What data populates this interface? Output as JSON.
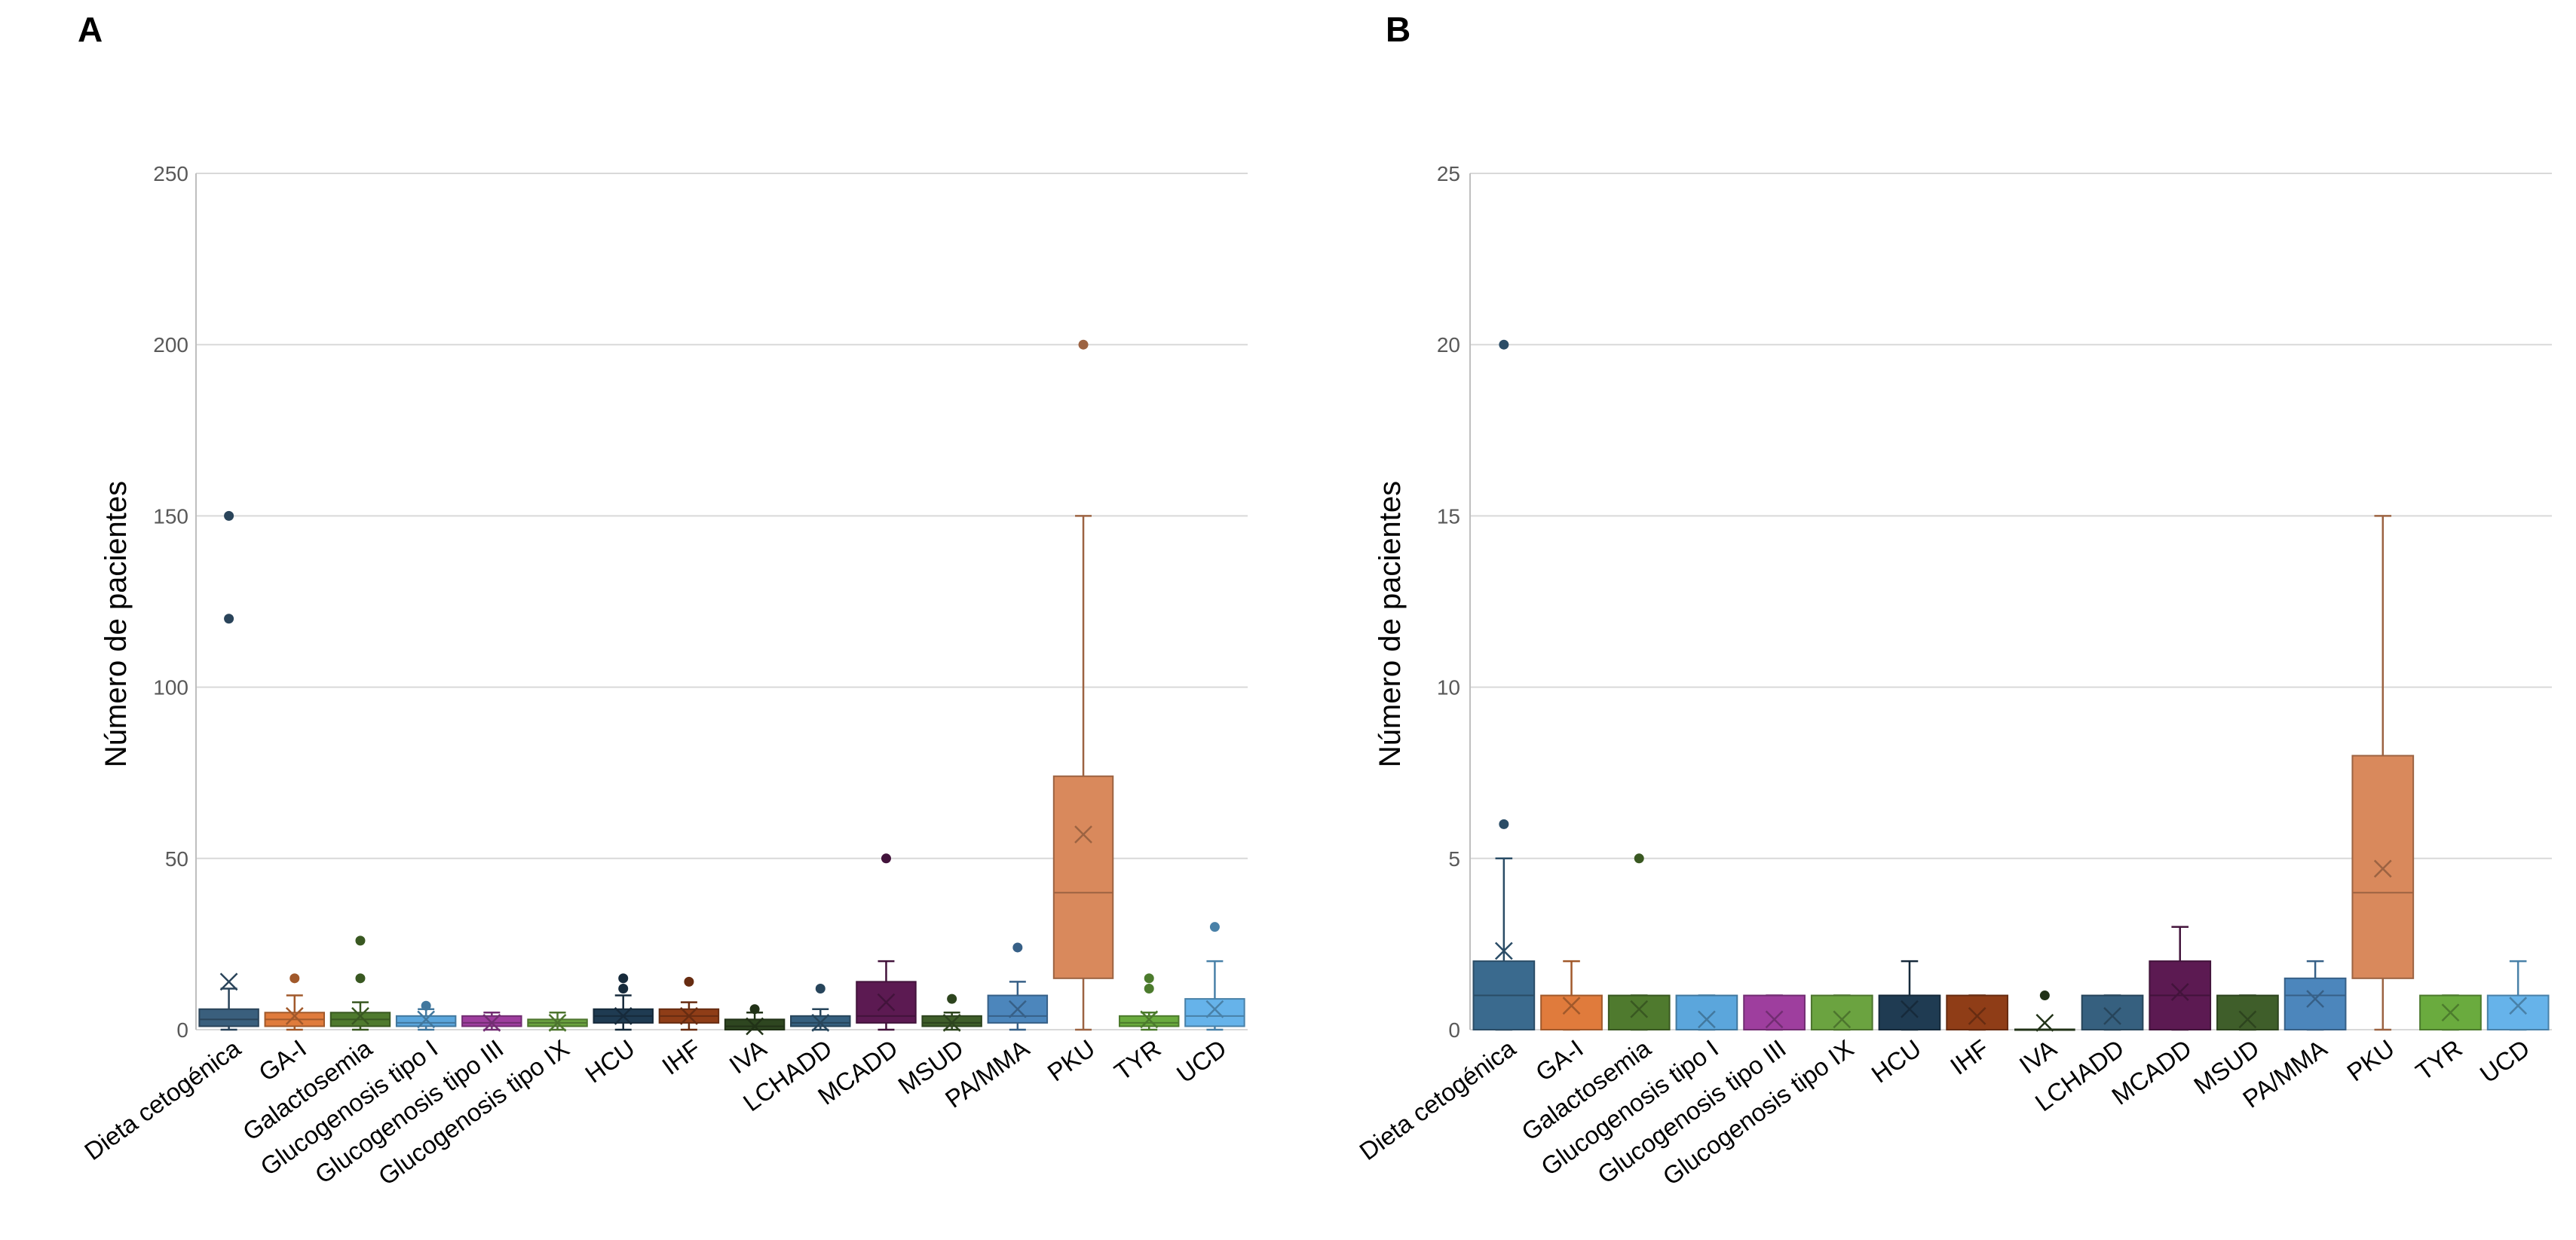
{
  "chart_data": [
    {
      "panel_label": "A",
      "type": "box",
      "ylabel": "Número de pacientes",
      "ylim": [
        0,
        250
      ],
      "yticks": [
        0,
        50,
        100,
        150,
        200,
        250
      ],
      "grid": true,
      "categories": [
        "Dieta cetogénica",
        "GA-I",
        "Galactosemia",
        "Glucogenosis tipo I",
        "Glucogenosis tipo III",
        "Glucogenosis tipo IX",
        "HCU",
        "IHF",
        "IVA",
        "LCHADD",
        "MCADD",
        "MSUD",
        "PA/MMA",
        "PKU",
        "TYR",
        "UCD"
      ],
      "boxes": [
        {
          "category": "Dieta cetogénica",
          "color": "#3a5f7d",
          "min": 0,
          "q1": 1,
          "median": 3,
          "q3": 6,
          "max": 12,
          "mean": 14,
          "outliers": [
            120,
            150
          ]
        },
        {
          "category": "GA-I",
          "color": "#e07b3c",
          "min": 0,
          "q1": 1,
          "median": 3,
          "q3": 5,
          "max": 10,
          "mean": 4,
          "outliers": [
            15
          ]
        },
        {
          "category": "Galactosemia",
          "color": "#4f7a2e",
          "min": 0,
          "q1": 1,
          "median": 3,
          "q3": 5,
          "max": 8,
          "mean": 4,
          "outliers": [
            15,
            26
          ]
        },
        {
          "category": "Glucogenosis tipo I",
          "color": "#5ba6dc",
          "min": 0,
          "q1": 1,
          "median": 2,
          "q3": 4,
          "max": 6,
          "mean": 3,
          "outliers": [
            7
          ]
        },
        {
          "category": "Glucogenosis tipo III",
          "color": "#9e3e9e",
          "min": 0,
          "q1": 1,
          "median": 2,
          "q3": 4,
          "max": 5,
          "mean": 2,
          "outliers": []
        },
        {
          "category": "Glucogenosis tipo IX",
          "color": "#6ba340",
          "min": 0,
          "q1": 1,
          "median": 2,
          "q3": 3,
          "max": 5,
          "mean": 2,
          "outliers": []
        },
        {
          "category": "HCU",
          "color": "#1f3b52",
          "min": 0,
          "q1": 2,
          "median": 4,
          "q3": 6,
          "max": 10,
          "mean": 4,
          "outliers": [
            12,
            15
          ]
        },
        {
          "category": "IHF",
          "color": "#8f3d17",
          "min": 0,
          "q1": 2,
          "median": 4,
          "q3": 6,
          "max": 8,
          "mean": 4,
          "outliers": [
            14
          ]
        },
        {
          "category": "IVA",
          "color": "#2e4620",
          "min": 0,
          "q1": 0,
          "median": 1,
          "q3": 3,
          "max": 5,
          "mean": 1,
          "outliers": [
            6
          ]
        },
        {
          "category": "LCHADD",
          "color": "#36607f",
          "min": 0,
          "q1": 1,
          "median": 2,
          "q3": 4,
          "max": 6,
          "mean": 2,
          "outliers": [
            12
          ]
        },
        {
          "category": "MCADD",
          "color": "#5c1a52",
          "min": 0,
          "q1": 2,
          "median": 4,
          "q3": 14,
          "max": 20,
          "mean": 8,
          "outliers": [
            50
          ]
        },
        {
          "category": "MSUD",
          "color": "#3f5e2a",
          "min": 0,
          "q1": 1,
          "median": 2,
          "q3": 4,
          "max": 5,
          "mean": 2,
          "outliers": [
            9
          ]
        },
        {
          "category": "PA/MMA",
          "color": "#4c86bc",
          "min": 0,
          "q1": 2,
          "median": 4,
          "q3": 10,
          "max": 14,
          "mean": 6,
          "outliers": [
            24
          ]
        },
        {
          "category": "PKU",
          "color": "#d9895c",
          "min": 0,
          "q1": 15,
          "median": 40,
          "q3": 74,
          "max": 150,
          "mean": 57,
          "outliers": [
            200
          ]
        },
        {
          "category": "TYR",
          "color": "#6aab3e",
          "min": 0,
          "q1": 1,
          "median": 2,
          "q3": 4,
          "max": 5,
          "mean": 3,
          "outliers": [
            12,
            15
          ]
        },
        {
          "category": "UCD",
          "color": "#66b3ea",
          "min": 0,
          "q1": 1,
          "median": 4,
          "q3": 9,
          "max": 20,
          "mean": 6,
          "outliers": [
            30
          ]
        }
      ]
    },
    {
      "panel_label": "B",
      "type": "box",
      "ylabel": "Número de pacientes",
      "ylim": [
        0,
        25
      ],
      "yticks": [
        0,
        5,
        10,
        15,
        20,
        25
      ],
      "grid": true,
      "categories": [
        "Dieta cetogénica",
        "GA-I",
        "Galactosemia",
        "Glucogenosis tipo I",
        "Glucogenosis tipo III",
        "Glucogenosis tipo IX",
        "HCU",
        "IHF",
        "IVA",
        "LCHADD",
        "MCADD",
        "MSUD",
        "PA/MMA",
        "PKU",
        "TYR",
        "UCD"
      ],
      "boxes": [
        {
          "category": "Dieta cetogénica",
          "color": "#3a6a8e",
          "min": 0,
          "q1": 0,
          "median": 1,
          "q3": 2,
          "max": 5,
          "mean": 2.3,
          "outliers": [
            6,
            20
          ]
        },
        {
          "category": "GA-I",
          "color": "#e07b3c",
          "min": 0,
          "q1": 0,
          "median": 0,
          "q3": 1,
          "max": 2,
          "mean": 0.7,
          "outliers": []
        },
        {
          "category": "Galactosemia",
          "color": "#4f7a2e",
          "min": 0,
          "q1": 0,
          "median": 0,
          "q3": 1,
          "max": 1,
          "mean": 0.6,
          "outliers": [
            5
          ]
        },
        {
          "category": "Glucogenosis tipo I",
          "color": "#5ba6dc",
          "min": 0,
          "q1": 0,
          "median": 0,
          "q3": 1,
          "max": 1,
          "mean": 0.3,
          "outliers": []
        },
        {
          "category": "Glucogenosis tipo III",
          "color": "#9e3e9e",
          "min": 0,
          "q1": 0,
          "median": 0,
          "q3": 1,
          "max": 1,
          "mean": 0.3,
          "outliers": []
        },
        {
          "category": "Glucogenosis tipo IX",
          "color": "#6ba340",
          "min": 0,
          "q1": 0,
          "median": 0,
          "q3": 1,
          "max": 1,
          "mean": 0.3,
          "outliers": []
        },
        {
          "category": "HCU",
          "color": "#1f3b52",
          "min": 0,
          "q1": 0,
          "median": 1,
          "q3": 1,
          "max": 2,
          "mean": 0.6,
          "outliers": []
        },
        {
          "category": "IHF",
          "color": "#8f3d17",
          "min": 0,
          "q1": 0,
          "median": 0,
          "q3": 1,
          "max": 1,
          "mean": 0.4,
          "outliers": []
        },
        {
          "category": "IVA",
          "color": "#2e4620",
          "min": 0,
          "q1": 0,
          "median": 0,
          "q3": 0,
          "max": 0,
          "mean": 0.2,
          "outliers": [
            1
          ]
        },
        {
          "category": "LCHADD",
          "color": "#36607f",
          "min": 0,
          "q1": 0,
          "median": 0,
          "q3": 1,
          "max": 1,
          "mean": 0.4,
          "outliers": []
        },
        {
          "category": "MCADD",
          "color": "#5c1a52",
          "min": 0,
          "q1": 0,
          "median": 1,
          "q3": 2,
          "max": 3,
          "mean": 1.1,
          "outliers": []
        },
        {
          "category": "MSUD",
          "color": "#3f5e2a",
          "min": 0,
          "q1": 0,
          "median": 0,
          "q3": 1,
          "max": 1,
          "mean": 0.3,
          "outliers": []
        },
        {
          "category": "PA/MMA",
          "color": "#4c86bc",
          "min": 0,
          "q1": 0,
          "median": 1,
          "q3": 1.5,
          "max": 2,
          "mean": 0.9,
          "outliers": []
        },
        {
          "category": "PKU",
          "color": "#d9895c",
          "min": 0,
          "q1": 1.5,
          "median": 4,
          "q3": 8,
          "max": 15,
          "mean": 4.7,
          "outliers": []
        },
        {
          "category": "TYR",
          "color": "#6aab3e",
          "min": 0,
          "q1": 0,
          "median": 0,
          "q3": 1,
          "max": 1,
          "mean": 0.5,
          "outliers": []
        },
        {
          "category": "UCD",
          "color": "#66b3ea",
          "min": 0,
          "q1": 0,
          "median": 0,
          "q3": 1,
          "max": 2,
          "mean": 0.7,
          "outliers": []
        }
      ]
    }
  ]
}
